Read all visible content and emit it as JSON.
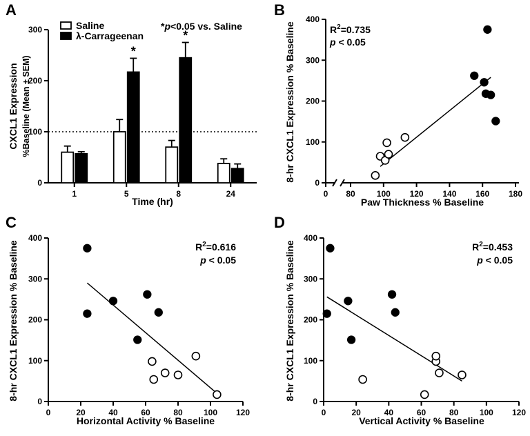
{
  "chart_data": [
    {
      "panel": "A",
      "type": "bar",
      "xlabel": "Time (hr)",
      "ylabel_lines": [
        "CXCL1 Expression",
        "%Baseline (Mean ± SEM)"
      ],
      "ylim": [
        0,
        300
      ],
      "yticks": [
        0,
        100,
        200,
        300
      ],
      "categories": [
        "1",
        "5",
        "8",
        "24"
      ],
      "series": [
        {
          "name": "Saline",
          "fill": "#ffffff",
          "values": [
            60,
            100,
            70,
            38
          ],
          "sem": [
            12,
            24,
            13,
            9
          ]
        },
        {
          "name": "λ-Carrageenan",
          "fill": "#000000",
          "values": [
            57,
            217,
            245,
            28
          ],
          "sem": [
            4,
            27,
            30,
            9
          ]
        }
      ],
      "significance": [
        {
          "category": "5",
          "series": "λ-Carrageenan",
          "mark": "*"
        },
        {
          "category": "8",
          "series": "λ-Carrageenan",
          "mark": "*"
        }
      ],
      "reference_line": 100,
      "note_star": "*",
      "note_p": "p",
      "note_rest": "<0.05 vs. Saline"
    },
    {
      "panel": "B",
      "type": "scatter",
      "xlabel": "Paw Thickness % Baseline",
      "ylabel": "8-hr CXCL1 Expression % Baseline",
      "xticks": [
        0,
        80,
        100,
        120,
        140,
        160,
        180
      ],
      "xlim_break": [
        0,
        80
      ],
      "ylim": [
        0,
        400
      ],
      "yticks": [
        0,
        100,
        200,
        300,
        400
      ],
      "r2_value": "=0.735",
      "p_label": "p",
      "p_value": "< 0.05",
      "legend_position": "top-left",
      "points_open": [
        [
          95,
          18
        ],
        [
          98,
          65
        ],
        [
          101,
          55
        ],
        [
          102,
          98
        ],
        [
          103,
          70
        ],
        [
          113,
          111
        ]
      ],
      "points_filled": [
        [
          155,
          262
        ],
        [
          161,
          246
        ],
        [
          162,
          218
        ],
        [
          163,
          375
        ],
        [
          165,
          215
        ],
        [
          168,
          151
        ]
      ],
      "fit_line": [
        [
          98,
          40
        ],
        [
          165,
          258
        ]
      ]
    },
    {
      "panel": "C",
      "type": "scatter",
      "xlabel": "Horizontal Activity % Baseline",
      "ylabel": "8-hr CXCL1 Expression % Baseline",
      "xticks": [
        0,
        20,
        40,
        60,
        80,
        100,
        120
      ],
      "xlim": [
        0,
        120
      ],
      "ylim": [
        0,
        400
      ],
      "yticks": [
        0,
        100,
        200,
        300,
        400
      ],
      "r2_value": "=0.616",
      "p_label": "p",
      "p_value": "< 0.05",
      "legend_position": "top-right",
      "points_open": [
        [
          64,
          98
        ],
        [
          65,
          54
        ],
        [
          72,
          70
        ],
        [
          80,
          65
        ],
        [
          91,
          111
        ],
        [
          104,
          17
        ]
      ],
      "points_filled": [
        [
          24,
          375
        ],
        [
          24,
          215
        ],
        [
          40,
          246
        ],
        [
          55,
          151
        ],
        [
          61,
          262
        ],
        [
          68,
          218
        ]
      ],
      "fit_line": [
        [
          24,
          290
        ],
        [
          104,
          20
        ]
      ]
    },
    {
      "panel": "D",
      "type": "scatter",
      "xlabel": "Vertical Activity % Baseline",
      "ylabel": "8-hr CXCL1 Expression % Baseline",
      "xticks": [
        0,
        20,
        40,
        60,
        80,
        100,
        120
      ],
      "xlim": [
        0,
        120
      ],
      "ylim": [
        0,
        400
      ],
      "yticks": [
        0,
        100,
        200,
        300,
        400
      ],
      "r2_value": "=0.453",
      "p_label": "p",
      "p_value": "< 0.05",
      "legend_position": "top-right",
      "points_open": [
        [
          24,
          54
        ],
        [
          62,
          17
        ],
        [
          69,
          98
        ],
        [
          69,
          111
        ],
        [
          71,
          70
        ],
        [
          85,
          65
        ]
      ],
      "points_filled": [
        [
          2,
          215
        ],
        [
          4,
          375
        ],
        [
          15,
          246
        ],
        [
          17,
          151
        ],
        [
          42,
          262
        ],
        [
          44,
          218
        ]
      ],
      "fit_line": [
        [
          2,
          256
        ],
        [
          85,
          50
        ]
      ]
    }
  ]
}
